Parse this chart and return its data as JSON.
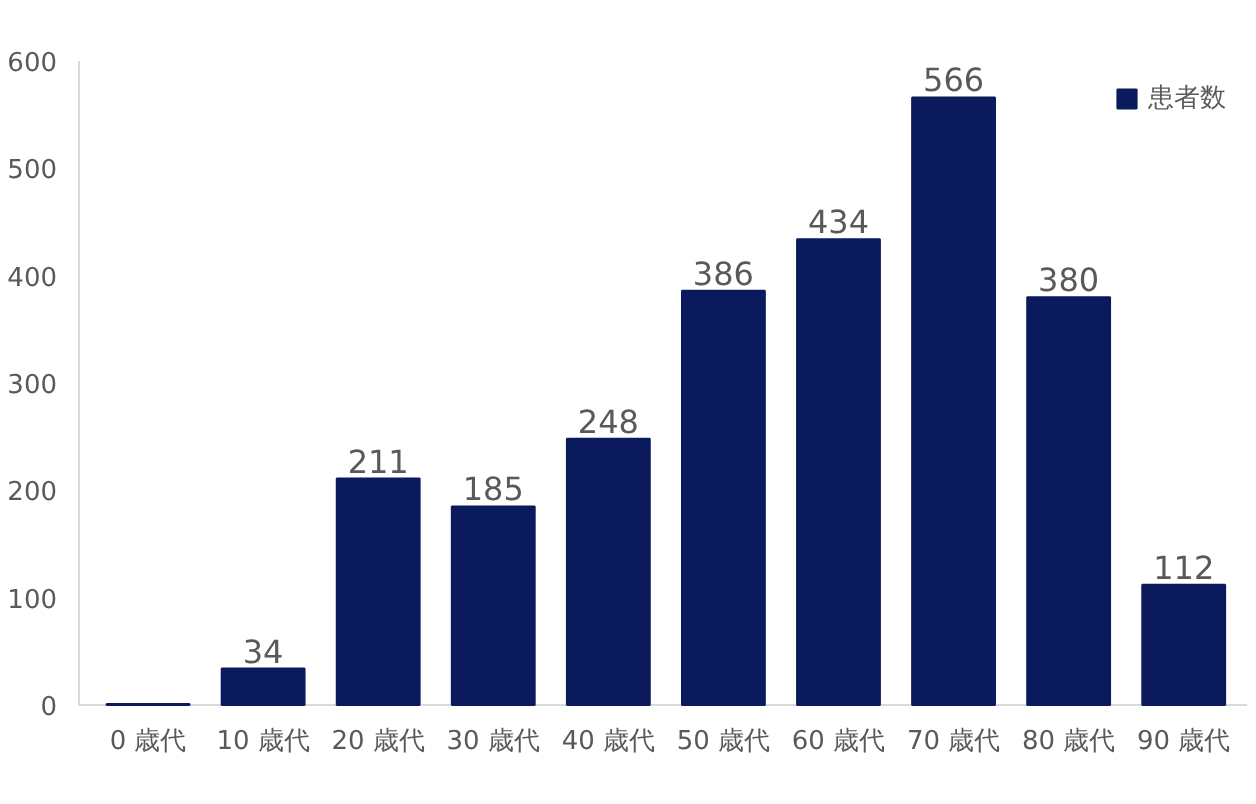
{
  "chart_data": {
    "type": "bar",
    "categories": [
      "0 歳代",
      "10 歳代",
      "20 歳代",
      "30 歳代",
      "40 歳代",
      "50 歳代",
      "60 歳代",
      "70 歳代",
      "80 歳代",
      "90 歳代"
    ],
    "series": [
      {
        "name": "患者数",
        "color": "#0a1a5c",
        "values": [
          1,
          34,
          211,
          185,
          248,
          386,
          434,
          566,
          380,
          112
        ],
        "value_labels": [
          null,
          "34",
          "211",
          "185",
          "248",
          "386",
          "434",
          "566",
          "380",
          "112"
        ]
      }
    ],
    "ylim": [
      0,
      600
    ],
    "yticks": [
      0,
      100,
      200,
      300,
      400,
      500,
      600
    ],
    "grid": false,
    "legend": "top right"
  }
}
